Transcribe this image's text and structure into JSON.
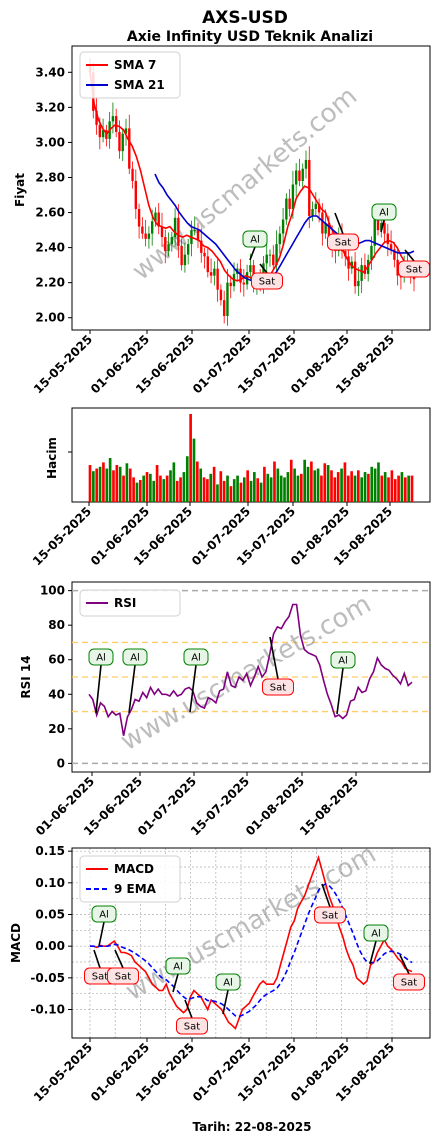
{
  "header": {
    "title": "AXS-USD",
    "subtitle": "Axie Infinity USD Teknik Analizi"
  },
  "watermark": "www.uscmarkets.com",
  "footer": {
    "date_label": "Tarih: 22-08-2025"
  },
  "colors": {
    "up": "#008000",
    "down": "#ff0000",
    "sma7": "#ff0000",
    "sma21": "#0000cd",
    "rsi": "#800080",
    "macd": "#ff0000",
    "signal": "#0000ff"
  },
  "chart_data": [
    {
      "type": "candlestick",
      "ylabel": "Fiyat",
      "ylim": [
        1.93,
        3.55
      ],
      "yticks": [
        "2.00",
        "2.20",
        "2.40",
        "2.60",
        "2.80",
        "3.00",
        "3.20",
        "3.40"
      ],
      "xticks": [
        "15-05-2025",
        "01-06-2025",
        "15-06-2025",
        "01-07-2025",
        "15-07-2025",
        "01-08-2025",
        "15-08-2025"
      ],
      "legend": {
        "position": "top-left",
        "entries": [
          "SMA 7",
          "SMA 21"
        ]
      },
      "close": [
        3.4,
        3.18,
        3.1,
        3.03,
        3.07,
        3.02,
        3.12,
        3.15,
        3.06,
        2.95,
        3.05,
        3.08,
        2.85,
        2.78,
        2.62,
        2.52,
        2.48,
        2.45,
        2.48,
        2.55,
        2.6,
        2.52,
        2.46,
        2.38,
        2.42,
        2.46,
        2.57,
        2.41,
        2.3,
        2.36,
        2.42,
        2.5,
        2.5,
        2.44,
        2.37,
        2.35,
        2.26,
        2.24,
        2.28,
        2.16,
        2.1,
        2.01,
        2.2,
        2.18,
        2.25,
        2.28,
        2.2,
        2.19,
        2.26,
        2.3,
        2.2,
        2.2,
        2.18,
        2.31,
        2.36,
        2.36,
        2.3,
        2.42,
        2.48,
        2.56,
        2.68,
        2.62,
        2.76,
        2.84,
        2.78,
        2.85,
        2.9,
        2.58,
        2.62,
        2.65,
        2.6,
        2.48,
        2.54,
        2.46,
        2.4,
        2.38,
        2.46,
        2.38,
        2.35,
        2.28,
        2.32,
        2.18,
        2.21,
        2.3,
        2.25,
        2.33,
        2.41,
        2.56,
        2.5,
        2.54,
        2.48,
        2.42,
        2.39,
        2.33,
        2.24,
        2.23,
        2.3,
        2.28,
        2.25,
        2.22
      ],
      "sma7": [
        3.4,
        3.22,
        3.13,
        3.08,
        3.05,
        3.08,
        3.1,
        3.09,
        3.07,
        3.02,
        2.98,
        2.92,
        2.84,
        2.74,
        2.64,
        2.57,
        2.53,
        2.52,
        2.51,
        2.52,
        2.49,
        2.47,
        2.46,
        2.47,
        2.46,
        2.45,
        2.44,
        2.41,
        2.4,
        2.38,
        2.35,
        2.32,
        2.27,
        2.24,
        2.22,
        2.21,
        2.22,
        2.24,
        2.23,
        2.22,
        2.21,
        2.24,
        2.23,
        2.25,
        2.29,
        2.34,
        2.42,
        2.52,
        2.59,
        2.68,
        2.72,
        2.75,
        2.74,
        2.7,
        2.66,
        2.62,
        2.6,
        2.53,
        2.48,
        2.43,
        2.39,
        2.34,
        2.3,
        2.28,
        2.27,
        2.26,
        2.29,
        2.33,
        2.37,
        2.4,
        2.43,
        2.44,
        2.43,
        2.4,
        2.35,
        2.31,
        2.29,
        2.28
      ],
      "sma21_start": 13,
      "sma21": [
        2.82,
        2.77,
        2.74,
        2.7,
        2.67,
        2.64,
        2.6,
        2.57,
        2.54,
        2.52,
        2.51,
        2.5,
        2.48,
        2.46,
        2.44,
        2.42,
        2.39,
        2.36,
        2.33,
        2.3,
        2.27,
        2.25,
        2.23,
        2.22,
        2.21,
        2.2,
        2.2,
        2.21,
        2.22,
        2.24,
        2.26,
        2.3,
        2.34,
        2.38,
        2.42,
        2.46,
        2.5,
        2.54,
        2.57,
        2.58,
        2.58,
        2.56,
        2.54,
        2.52,
        2.5,
        2.48,
        2.46,
        2.44,
        2.42,
        2.42,
        2.42,
        2.43,
        2.44,
        2.44,
        2.43,
        2.42,
        2.41,
        2.4,
        2.39,
        2.38,
        2.37,
        2.37,
        2.37,
        2.37,
        2.38
      ],
      "annotations": [
        {
          "label": "Al",
          "date": "06-07-2025",
          "kind": "buy"
        },
        {
          "label": "Sat",
          "date": "08-07-2025",
          "kind": "sell"
        },
        {
          "label": "Sat",
          "date": "29-07-2025",
          "kind": "sell"
        },
        {
          "label": "Al",
          "date": "13-08-2025",
          "kind": "buy"
        },
        {
          "label": "Sat",
          "date": "22-08-2025",
          "kind": "sell"
        }
      ]
    },
    {
      "type": "bar",
      "ylabel": "Hacim",
      "xticks": [
        "15-05-2025",
        "01-06-2025",
        "15-06-2025",
        "01-07-2025",
        "15-07-2025",
        "01-08-2025",
        "15-08-2025"
      ],
      "values": [
        0.42,
        0.35,
        0.38,
        0.4,
        0.45,
        0.38,
        0.5,
        0.36,
        0.42,
        0.4,
        0.3,
        0.44,
        0.38,
        0.28,
        0.22,
        0.25,
        0.3,
        0.34,
        0.32,
        0.24,
        0.42,
        0.3,
        0.26,
        0.3,
        0.36,
        0.45,
        0.24,
        0.28,
        0.34,
        0.52,
        1.0,
        0.72,
        0.46,
        0.38,
        0.28,
        0.26,
        0.32,
        0.4,
        0.2,
        0.35,
        0.24,
        0.3,
        0.18,
        0.26,
        0.3,
        0.22,
        0.28,
        0.36,
        0.24,
        0.34,
        0.27,
        0.22,
        0.4,
        0.32,
        0.28,
        0.46,
        0.38,
        0.3,
        0.28,
        0.34,
        0.48,
        0.38,
        0.3,
        0.32,
        0.48,
        0.4,
        0.46,
        0.36,
        0.38,
        0.3,
        0.44,
        0.42,
        0.36,
        0.28,
        0.34,
        0.38,
        0.45,
        0.3,
        0.35,
        0.3,
        0.36,
        0.28,
        0.34,
        0.32,
        0.4,
        0.38,
        0.45,
        0.3,
        0.34,
        0.28,
        0.36,
        0.26,
        0.3,
        0.34,
        0.28,
        0.3,
        0.3
      ],
      "directions": [
        0,
        1,
        0,
        1,
        0,
        1,
        1,
        0,
        0,
        1,
        0,
        1,
        0,
        0,
        1,
        0,
        1,
        0,
        1,
        1,
        0,
        0,
        1,
        0,
        1,
        1,
        0,
        0,
        1,
        1,
        0,
        1,
        0,
        1,
        0,
        0,
        1,
        0,
        1,
        0,
        0,
        1,
        0,
        1,
        1,
        0,
        1,
        0,
        1,
        1,
        0,
        1,
        0,
        1,
        1,
        0,
        1,
        1,
        1,
        1,
        0,
        1,
        1,
        0,
        1,
        1,
        0,
        1,
        1,
        0,
        0,
        1,
        0,
        0,
        0,
        1,
        0,
        0,
        0,
        1,
        0,
        1,
        1,
        0,
        1,
        1,
        1,
        0,
        1,
        0,
        0,
        0,
        0,
        1,
        0,
        1,
        0
      ]
    },
    {
      "type": "line",
      "ylabel": "RSI 14",
      "ylim": [
        -5,
        105
      ],
      "yticks": [
        0,
        20,
        40,
        60,
        80,
        100
      ],
      "xticks": [
        "01-06-2025",
        "15-06-2025",
        "01-07-2025",
        "15-07-2025",
        "01-08-2025",
        "15-08-2025"
      ],
      "reference_lines": [
        0,
        30,
        50,
        70,
        100
      ],
      "legend": {
        "position": "top-left",
        "entries": [
          "RSI"
        ]
      },
      "values": [
        40,
        37,
        28,
        35,
        33,
        27,
        30,
        28,
        29,
        16,
        27,
        31,
        37,
        36,
        41,
        38,
        44,
        40,
        43,
        40,
        40,
        39,
        42,
        39,
        40,
        43,
        44,
        42,
        35,
        33,
        32,
        38,
        37,
        35,
        42,
        43,
        53,
        45,
        44,
        50,
        48,
        52,
        45,
        50,
        56,
        50,
        53,
        63,
        75,
        79,
        78,
        82,
        85,
        92,
        92,
        74,
        66,
        64,
        63,
        62,
        57,
        48,
        40,
        34,
        27,
        28,
        26,
        28,
        36,
        37,
        44,
        41,
        42,
        49,
        53,
        61,
        57,
        55,
        54,
        51,
        49,
        46,
        52,
        45,
        47
      ],
      "annotations": [
        {
          "label": "Al",
          "date": "03-06-2025",
          "kind": "buy"
        },
        {
          "label": "Al",
          "date": "09-06-2025",
          "kind": "buy"
        },
        {
          "label": "Al",
          "date": "25-06-2025",
          "kind": "buy"
        },
        {
          "label": "Sat",
          "date": "16-07-2025",
          "kind": "sell"
        },
        {
          "label": "Al",
          "date": "02-08-2025",
          "kind": "buy"
        }
      ]
    },
    {
      "type": "line",
      "ylabel": "MACD",
      "xlabel": "Tarih: 22-08-2025",
      "ylim": [
        -0.145,
        0.155
      ],
      "yticks": [
        "-0.10",
        "-0.05",
        "0.00",
        "0.05",
        "0.10",
        "0.15"
      ],
      "xticks": [
        "15-05-2025",
        "01-06-2025",
        "15-06-2025",
        "01-07-2025",
        "15-07-2025",
        "01-08-2025",
        "15-08-2025"
      ],
      "legend": {
        "position": "top-left",
        "entries": [
          "MACD",
          "9 EMA"
        ]
      },
      "series": [
        {
          "name": "MACD",
          "values": [
            0.0,
            0.0,
            -0.002,
            0.001,
            0.0,
            0.0,
            0.004,
            0.008,
            0.0,
            -0.01,
            -0.01,
            -0.012,
            -0.015,
            -0.025,
            -0.03,
            -0.035,
            -0.04,
            -0.05,
            -0.06,
            -0.065,
            -0.07,
            -0.07,
            -0.06,
            -0.075,
            -0.085,
            -0.095,
            -0.1,
            -0.105,
            -0.1,
            -0.08,
            -0.07,
            -0.075,
            -0.08,
            -0.09,
            -0.1,
            -0.085,
            -0.09,
            -0.095,
            -0.1,
            -0.11,
            -0.12,
            -0.125,
            -0.13,
            -0.115,
            -0.1,
            -0.095,
            -0.09,
            -0.08,
            -0.07,
            -0.06,
            -0.055,
            -0.06,
            -0.06,
            -0.06,
            -0.05,
            -0.03,
            -0.01,
            0.01,
            0.03,
            0.04,
            0.06,
            0.07,
            0.08,
            0.095,
            0.11,
            0.125,
            0.14,
            0.12,
            0.1,
            0.08,
            0.065,
            0.05,
            0.03,
            0.015,
            -0.005,
            -0.02,
            -0.03,
            -0.05,
            -0.055,
            -0.06,
            -0.055,
            -0.03,
            -0.025,
            -0.01,
            0.0,
            0.01,
            0.0,
            -0.005,
            -0.012,
            -0.02,
            -0.025,
            -0.035,
            -0.038,
            -0.04
          ]
        },
        {
          "name": "9 EMA",
          "values": [
            0.0,
            0.0,
            -0.001,
            0.0,
            0.0,
            0.0,
            0.001,
            0.003,
            0.002,
            -0.001,
            -0.003,
            -0.005,
            -0.008,
            -0.011,
            -0.015,
            -0.019,
            -0.023,
            -0.028,
            -0.034,
            -0.04,
            -0.046,
            -0.051,
            -0.053,
            -0.058,
            -0.063,
            -0.069,
            -0.075,
            -0.08,
            -0.084,
            -0.083,
            -0.081,
            -0.08,
            -0.08,
            -0.082,
            -0.086,
            -0.086,
            -0.087,
            -0.089,
            -0.091,
            -0.095,
            -0.1,
            -0.105,
            -0.11,
            -0.111,
            -0.109,
            -0.106,
            -0.103,
            -0.098,
            -0.093,
            -0.086,
            -0.08,
            -0.076,
            -0.073,
            -0.07,
            -0.066,
            -0.059,
            -0.049,
            -0.037,
            -0.023,
            -0.01,
            0.005,
            0.02,
            0.035,
            0.05,
            0.063,
            0.075,
            0.088,
            0.095,
            0.098,
            0.096,
            0.09,
            0.082,
            0.072,
            0.06,
            0.047,
            0.033,
            0.02,
            0.005,
            -0.008,
            -0.018,
            -0.025,
            -0.026,
            -0.026,
            -0.023,
            -0.018,
            -0.012,
            -0.009,
            -0.008,
            -0.009,
            -0.011,
            -0.014,
            -0.018,
            -0.022,
            -0.026
          ]
        }
      ],
      "annotations": [
        {
          "label": "Sat",
          "date": "16-05-2025",
          "kind": "sell"
        },
        {
          "label": "Al",
          "date": "18-05-2025",
          "kind": "buy"
        },
        {
          "label": "Sat",
          "date": "25-05-2025",
          "kind": "sell"
        },
        {
          "label": "Al",
          "date": "21-06-2025",
          "kind": "buy"
        },
        {
          "label": "Sat",
          "date": "17-06-2025",
          "kind": "sell"
        },
        {
          "label": "Al",
          "date": "29-06-2025",
          "kind": "buy"
        },
        {
          "label": "Sat",
          "date": "28-07-2025",
          "kind": "sell"
        },
        {
          "label": "Al",
          "date": "10-08-2025",
          "kind": "buy"
        },
        {
          "label": "Sat",
          "date": "20-08-2025",
          "kind": "sell"
        }
      ]
    }
  ]
}
